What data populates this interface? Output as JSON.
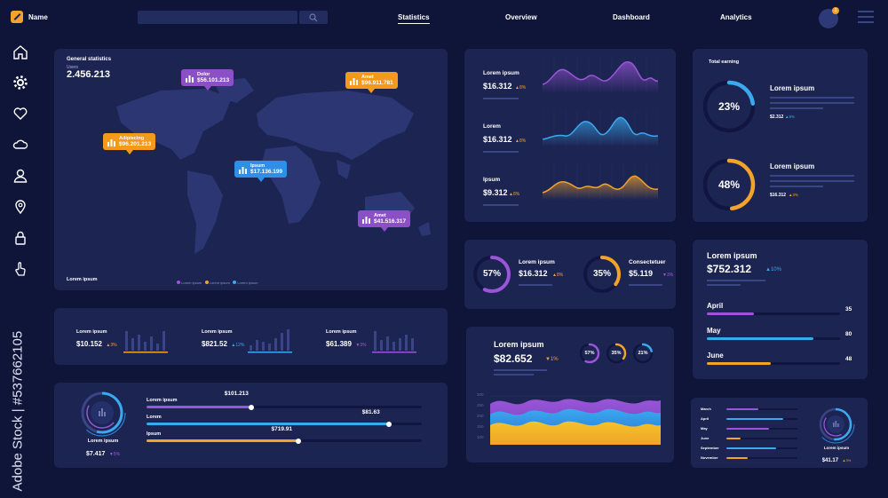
{
  "header": {
    "brand": "Name",
    "search_placeholder": "",
    "tabs": [
      {
        "label": "Statistics"
      },
      {
        "label": "Overview"
      },
      {
        "label": "Dashboard"
      },
      {
        "label": "Analytics"
      }
    ],
    "notification_count": "1"
  },
  "sidebar": {
    "icons": [
      "home-icon",
      "gear-icon",
      "heart-icon",
      "cloud-icon",
      "user-icon",
      "location-pin-icon",
      "lock-icon",
      "hand-pointer-icon"
    ]
  },
  "watermark": "Adobe Stock | #537662105",
  "map_card": {
    "title": "General statistics",
    "subtitle": "Users",
    "total": "2.456.213",
    "footer": "Lorem ipsum",
    "legend": [
      "Lorem ipsum",
      "Lorem ipsum",
      "Lorem ipsum"
    ],
    "pins": [
      {
        "label": "Dolor",
        "value": "$56.101.213",
        "color": "#8b4fc6"
      },
      {
        "label": "Amet",
        "value": "$96.911.781",
        "color": "#f39a1c"
      },
      {
        "label": "Adipiscing",
        "value": "$96.201.213",
        "color": "#f39a1c"
      },
      {
        "label": "Ipsum",
        "value": "$17.136.199",
        "color": "#2f8fe6"
      },
      {
        "label": "Amet",
        "value": "$41.516.317",
        "color": "#8b4fc6"
      }
    ]
  },
  "mini_stats": [
    {
      "label": "Lorem ipsum",
      "value": "$10.152",
      "delta": "▲3%",
      "trend": "up"
    },
    {
      "label": "Lorem ipsum",
      "value": "$821.52",
      "delta": "▲12%",
      "trend": "up-b"
    },
    {
      "label": "Lorem ipsum",
      "value": "$61.389",
      "delta": "▼3%",
      "trend": "down"
    }
  ],
  "progress_card": {
    "label": "Lorem ipsum",
    "value": "$7.417",
    "delta": "▼5%",
    "bars": [
      {
        "label": "Lorem ipsum",
        "value": "$101.213",
        "fill": 0.38,
        "color": "#9a55d8"
      },
      {
        "label": "Lorem",
        "value": "$81.63",
        "fill": 0.88,
        "color": "#3aa9ee"
      },
      {
        "label": "Ipsum",
        "value": "$719.91",
        "fill": 0.55,
        "color": "#f3a32a"
      }
    ]
  },
  "wave_card": {
    "rows": [
      {
        "label": "Lorem ipsum",
        "value": "$16.312",
        "delta": "▲8%",
        "color": "#9a55d8"
      },
      {
        "label": "Lorem",
        "value": "$16.312",
        "delta": "▲8%",
        "color": "#3aa9ee"
      },
      {
        "label": "Ipsum",
        "value": "$9.312",
        "delta": "▲8%",
        "color": "#f3a32a"
      }
    ]
  },
  "donut_pair": [
    {
      "percent": "57%",
      "label": "Lorem ipsum",
      "value": "$16.312",
      "delta": "▲8%",
      "fraction": 0.57,
      "color": "#9a55d8"
    },
    {
      "percent": "35%",
      "label": "Consectetuer",
      "value": "$5.119",
      "delta": "▼3%",
      "fraction": 0.35,
      "color": "#f3a32a"
    }
  ],
  "area_card": {
    "label": "Lorem ipsum",
    "value": "$82.652",
    "delta": "▼1%",
    "rings": [
      {
        "percent": "57%",
        "fraction": 0.57,
        "color": "#9a55d8"
      },
      {
        "percent": "35%",
        "fraction": 0.35,
        "color": "#f3a32a"
      },
      {
        "percent": "21%",
        "fraction": 0.21,
        "color": "#3aa9ee"
      }
    ],
    "y_ticks": [
      "300",
      "250",
      "200",
      "150",
      "100"
    ]
  },
  "earning_card": {
    "title": "Total earning",
    "items": [
      {
        "percent": "23%",
        "label": "Lorem ipsum",
        "value": "$2.312",
        "delta": "▲8%",
        "fraction": 0.23,
        "color": "#3aa9ee"
      },
      {
        "percent": "48%",
        "label": "Lorem ipsum",
        "value": "$16.312",
        "delta": "▲3%",
        "fraction": 0.48,
        "color": "#f3a32a"
      }
    ]
  },
  "months_card": {
    "label": "Lorem ipsum",
    "value": "$752.312",
    "delta": "▲10%",
    "rows": [
      {
        "month": "April",
        "value": "35",
        "fill": 0.35,
        "color": "#9a55d8"
      },
      {
        "month": "May",
        "value": "80",
        "fill": 0.8,
        "color": "#3aa9ee"
      },
      {
        "month": "June",
        "value": "48",
        "fill": 0.48,
        "color": "#f3a32a"
      }
    ]
  },
  "small_months_card": {
    "rows": [
      {
        "month": "March",
        "fill": 0.45,
        "color": "#9a55d8"
      },
      {
        "month": "April",
        "fill": 0.8,
        "color": "#3aa9ee"
      },
      {
        "month": "May",
        "fill": 0.6,
        "color": "#9a55d8"
      },
      {
        "month": "June",
        "fill": 0.2,
        "color": "#f3a32a"
      },
      {
        "month": "September",
        "fill": 0.7,
        "color": "#3aa9ee"
      },
      {
        "month": "November",
        "fill": 0.3,
        "color": "#f3a32a"
      }
    ],
    "label": "Lorem ipsum",
    "value": "$41.17",
    "delta": "▲3%"
  }
}
